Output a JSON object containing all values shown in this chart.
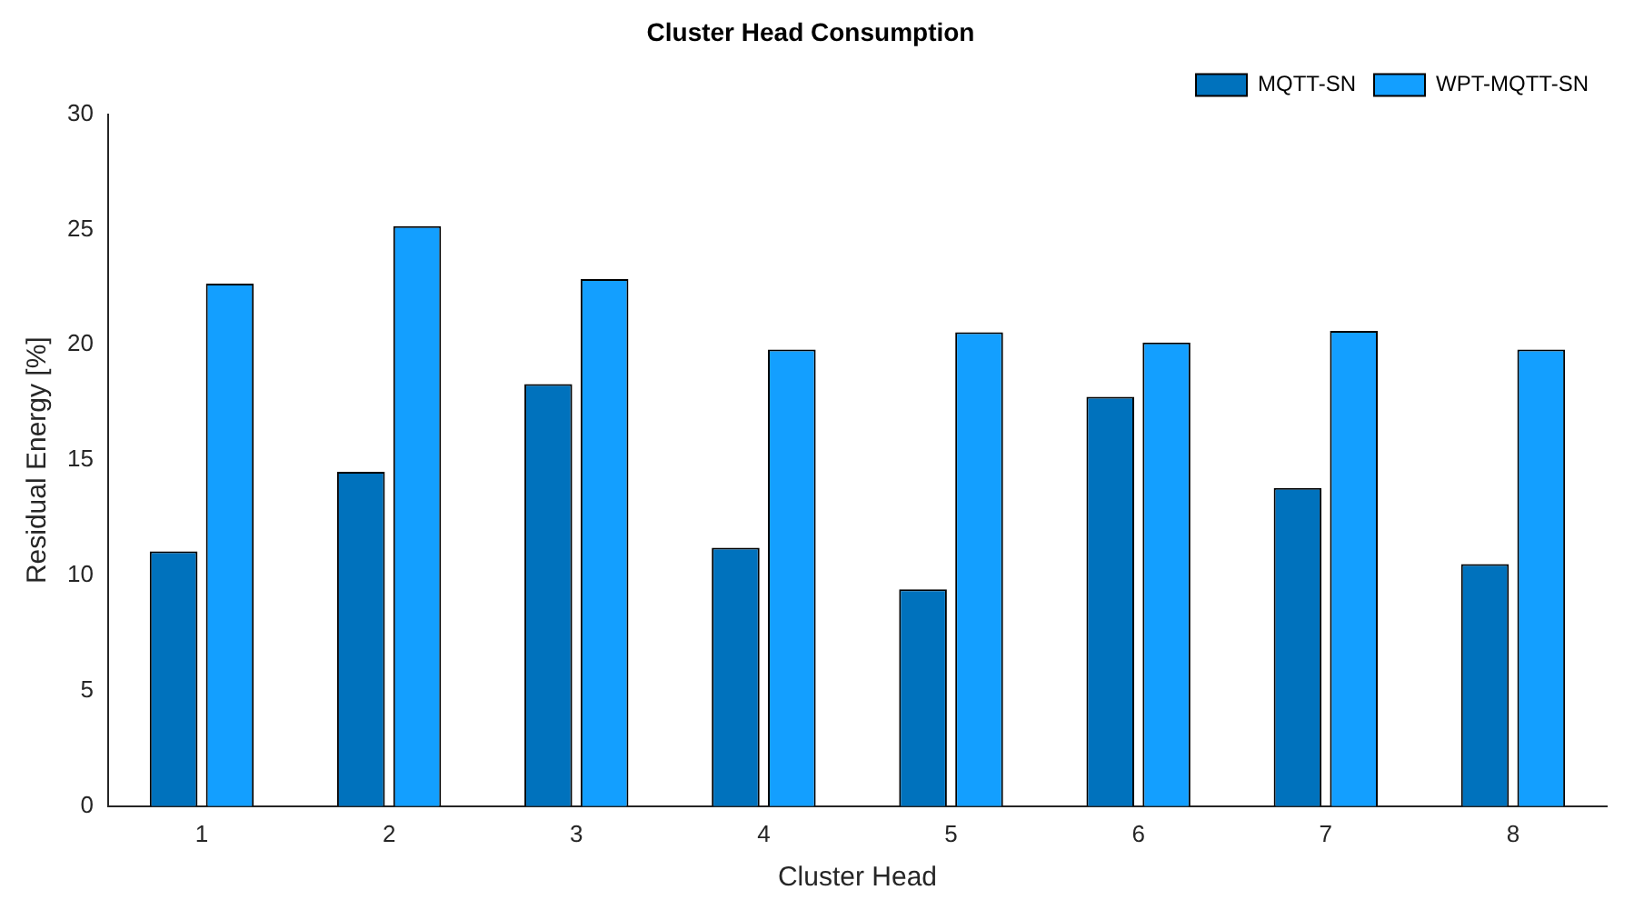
{
  "chart_data": {
    "type": "bar",
    "title": "Cluster Head Consumption",
    "xlabel": "Cluster Head",
    "ylabel": "Residual Energy [%]",
    "categories": [
      "1",
      "2",
      "3",
      "4",
      "5",
      "6",
      "7",
      "8"
    ],
    "series": [
      {
        "name": "MQTT-SN",
        "color": "#0072bd",
        "values": [
          11.05,
          14.5,
          18.3,
          11.2,
          9.4,
          17.75,
          13.8,
          10.5
        ]
      },
      {
        "name": "WPT-MQTT-SN",
        "color": "#139fff",
        "values": [
          22.65,
          25.15,
          22.85,
          19.8,
          20.55,
          20.1,
          20.6,
          19.8
        ]
      }
    ],
    "ylim": [
      0,
      30
    ],
    "yticks": [
      0,
      5,
      10,
      15,
      20,
      25,
      30
    ],
    "legend": "top right"
  }
}
